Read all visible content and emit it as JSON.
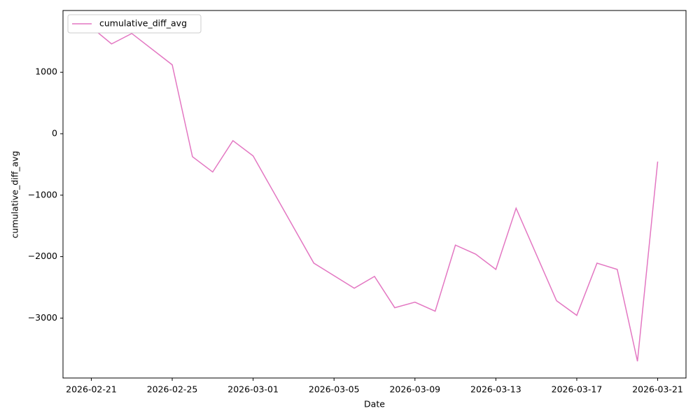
{
  "chart_data": {
    "type": "line",
    "x_label": "Date",
    "y_label": "cumulative_diff_avg",
    "x": [
      "2026-02-21",
      "2026-02-22",
      "2026-02-23",
      "2026-02-25",
      "2026-02-26",
      "2026-02-27",
      "2026-02-28",
      "2026-03-01",
      "2026-03-04",
      "2026-03-06",
      "2026-03-07",
      "2026-03-08",
      "2026-03-09",
      "2026-03-10",
      "2026-03-11",
      "2026-03-12",
      "2026-03-13",
      "2026-03-14",
      "2026-03-16",
      "2026-03-17",
      "2026-03-18",
      "2026-03-19",
      "2026-03-20",
      "2026-03-21"
    ],
    "series": [
      {
        "name": "cumulative_diff_avg",
        "color": "#e377c2",
        "values": [
          1733,
          1461,
          1631,
          1121,
          -374,
          -623,
          -113,
          -362,
          -2106,
          -2514,
          -2322,
          -2831,
          -2741,
          -2888,
          -1812,
          -1959,
          -2208,
          -1212,
          -2718,
          -2956,
          -2106,
          -2208,
          -3703,
          -453
        ]
      }
    ],
    "xlim": [
      "2026-02-19T14:24",
      "2026-03-22T09:36"
    ],
    "xticks": [
      "2026-02-21",
      "2026-02-25",
      "2026-03-01",
      "2026-03-05",
      "2026-03-09",
      "2026-03-13",
      "2026-03-17",
      "2026-03-21"
    ],
    "ylim": [
      -3975,
      2005
    ],
    "yticks": [
      {
        "value": -3000,
        "label": "−3000"
      },
      {
        "value": -2000,
        "label": "−2000"
      },
      {
        "value": -1000,
        "label": "−1000"
      },
      0,
      1000
    ],
    "legend": "upper-left"
  }
}
